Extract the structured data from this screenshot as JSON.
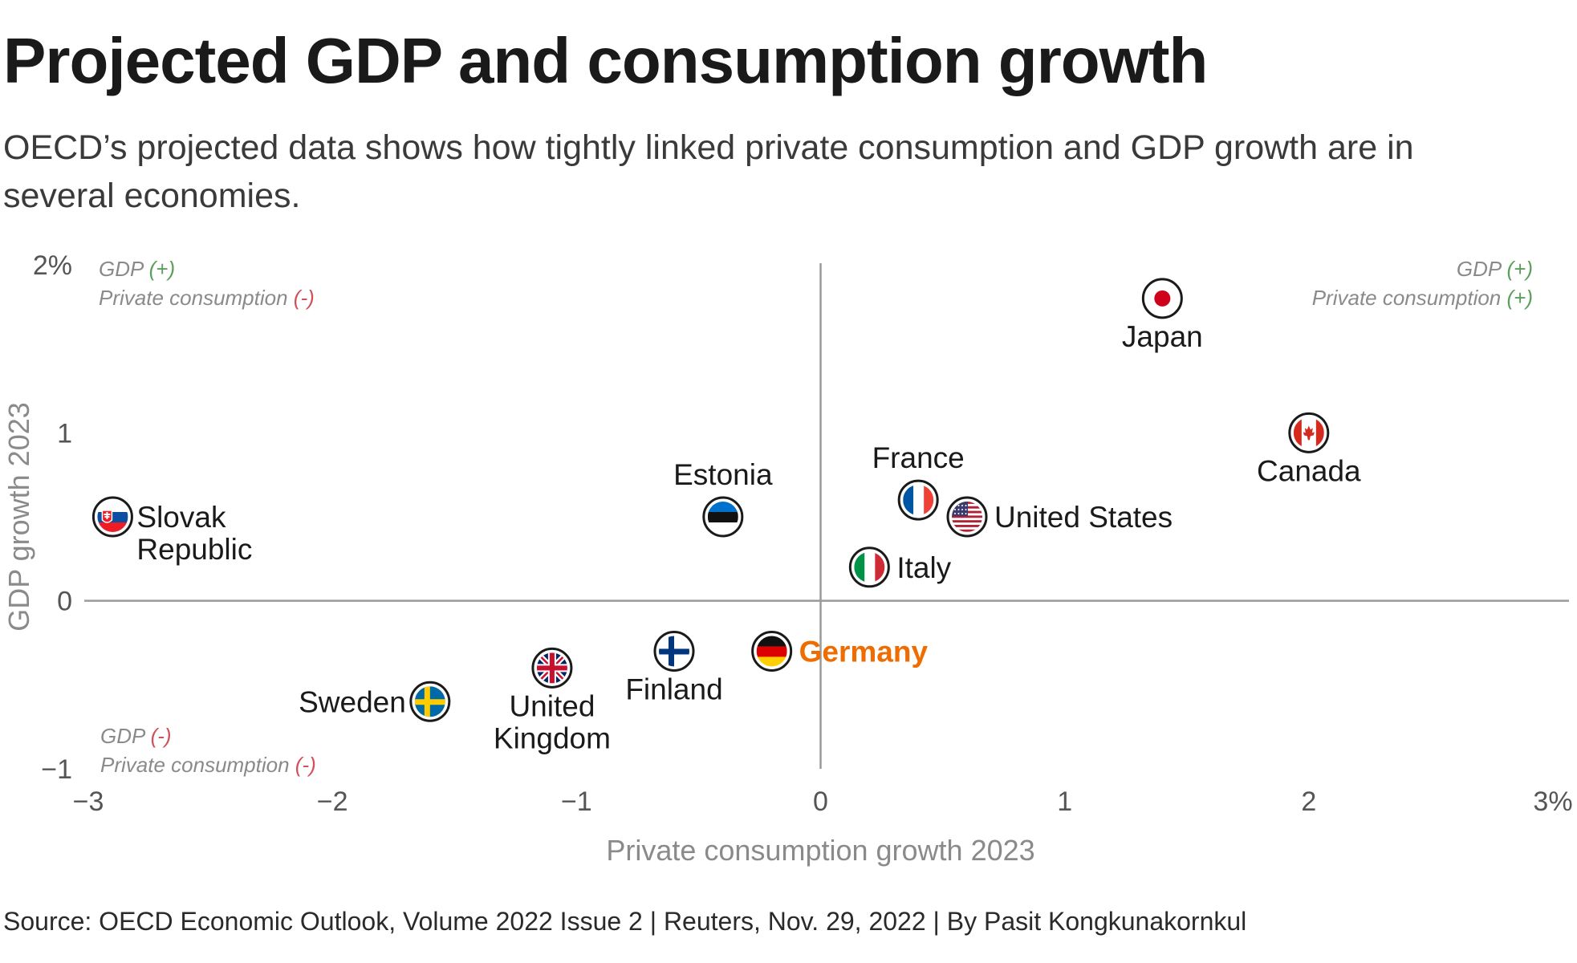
{
  "title": "Projected GDP and consumption growth",
  "subtitle": "OECD’s projected data shows how tightly linked private consumption and GDP growth are in several economies.",
  "source": "Source: OECD Economic Outlook, Volume 2022 Issue 2 | Reuters, Nov. 29, 2022 | By Pasit Kongkunakornkul",
  "chart_data": {
    "type": "scatter",
    "xlabel": "Private consumption growth 2023",
    "ylabel": "GDP growth 2023",
    "xlim": [
      -3,
      3
    ],
    "ylim": [
      -1,
      2
    ],
    "x_ticks": [
      {
        "value": -3,
        "label": "−3"
      },
      {
        "value": -2,
        "label": "−2"
      },
      {
        "value": -1,
        "label": "−1"
      },
      {
        "value": 0,
        "label": "0"
      },
      {
        "value": 1,
        "label": "1"
      },
      {
        "value": 2,
        "label": "2"
      },
      {
        "value": 3,
        "label": "3%"
      }
    ],
    "y_ticks": [
      {
        "value": 2,
        "label": "2%"
      },
      {
        "value": 1,
        "label": "1"
      },
      {
        "value": 0,
        "label": "0"
      },
      {
        "value": -1,
        "label": "−1"
      }
    ],
    "highlight_color": "#ef6c00",
    "points": [
      {
        "label": "Japan",
        "x": 1.4,
        "y": 1.8,
        "flag": "japan",
        "label_pos": "below"
      },
      {
        "label": "Canada",
        "x": 2.0,
        "y": 1.0,
        "flag": "canada",
        "label_pos": "below"
      },
      {
        "label": "France",
        "x": 0.4,
        "y": 0.6,
        "flag": "france",
        "label_pos": "above"
      },
      {
        "label": "United States",
        "x": 0.6,
        "y": 0.5,
        "flag": "united-states",
        "label_pos": "right"
      },
      {
        "label": "Italy",
        "x": 0.2,
        "y": 0.2,
        "flag": "italy",
        "label_pos": "right"
      },
      {
        "label": "Estonia",
        "x": -0.4,
        "y": 0.5,
        "flag": "estonia",
        "label_pos": "above"
      },
      {
        "label": "Slovak Republic",
        "x": -2.9,
        "y": 0.5,
        "flag": "slovakia",
        "label_pos": "right-wrap"
      },
      {
        "label": "Germany",
        "x": -0.2,
        "y": -0.3,
        "flag": "germany",
        "label_pos": "right",
        "highlight": true
      },
      {
        "label": "Finland",
        "x": -0.6,
        "y": -0.3,
        "flag": "finland",
        "label_pos": "below"
      },
      {
        "label": "United Kingdom",
        "x": -1.1,
        "y": -0.4,
        "flag": "united-kingdom",
        "label_pos": "below-wrap"
      },
      {
        "label": "Sweden",
        "x": -1.6,
        "y": -0.6,
        "flag": "sweden",
        "label_pos": "left"
      }
    ],
    "quadrant_labels": {
      "top_left": {
        "gdp": "GDP",
        "gdp_sign": "(+)",
        "pc": "Private consumption",
        "pc_sign": "(-)"
      },
      "top_right": {
        "gdp": "GDP",
        "gdp_sign": "(+)",
        "pc": "Private consumption",
        "pc_sign": "(+)"
      },
      "bottom_left": {
        "gdp": "GDP",
        "gdp_sign": "(-)",
        "pc": "Private consumption",
        "pc_sign": "(-)"
      }
    }
  }
}
